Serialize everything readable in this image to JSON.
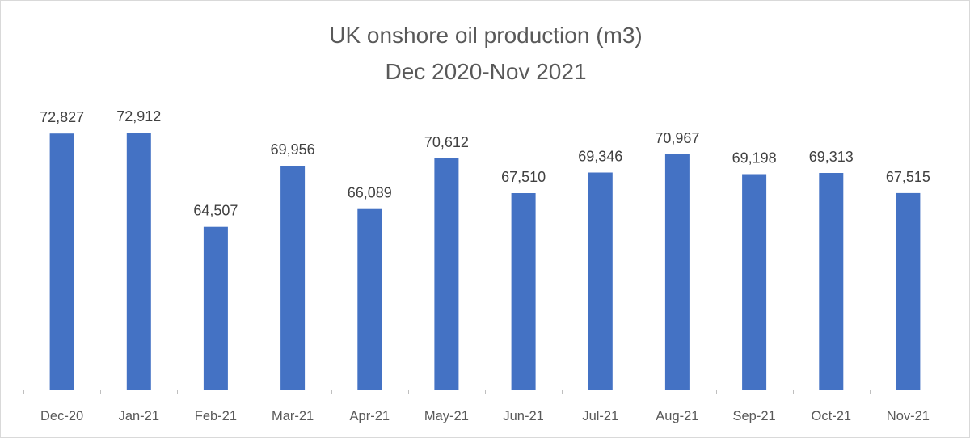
{
  "chart_data": {
    "type": "bar",
    "title": "UK onshore oil production (m3)",
    "subtitle": "Dec 2020-Nov 2021",
    "categories": [
      "Dec-20",
      "Jan-21",
      "Feb-21",
      "Mar-21",
      "Apr-21",
      "May-21",
      "Jun-21",
      "Jul-21",
      "Aug-21",
      "Sep-21",
      "Oct-21",
      "Nov-21"
    ],
    "values": [
      72827,
      72912,
      64507,
      69956,
      66089,
      70612,
      67510,
      69346,
      70967,
      69198,
      69313,
      67515
    ],
    "value_labels": [
      "72,827",
      "72,912",
      "64,507",
      "69,956",
      "66,089",
      "70,612",
      "67,510",
      "69,346",
      "70,967",
      "69,198",
      "69,313",
      "67,515"
    ],
    "ylim": [
      50000,
      75000
    ],
    "grid": false,
    "y_axis_visible": false,
    "legend": "none",
    "bar_color": "#4472c4"
  }
}
